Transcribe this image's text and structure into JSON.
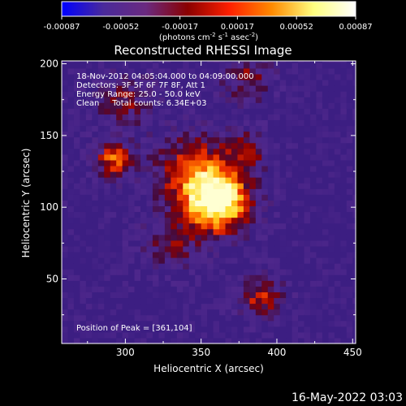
{
  "colorbar": {
    "tick_labels": [
      "-0.00087",
      "-0.00052",
      "-0.00017",
      "0.00017",
      "0.00052",
      "0.00087"
    ],
    "tick_values": [
      -0.00087,
      -0.00052,
      -0.00017,
      0.00017,
      0.00052,
      0.00087
    ],
    "unit": "(photons cm",
    "unit_exp1": "-2",
    "unit_mid": " s",
    "unit_exp2": "-1",
    "unit_mid2": " asec",
    "unit_exp3": "-2",
    "unit_end": ")",
    "stops": [
      "#0000ff",
      "#4a2a9a",
      "#6a2a80",
      "#8a0000",
      "#ff2000",
      "#ff8a00",
      "#ffff80",
      "#ffffff"
    ]
  },
  "chart_data": {
    "type": "heatmap",
    "title": "Reconstructed RHESSI Image",
    "xlabel": "Heliocentric X (arcsec)",
    "ylabel": "Heliocentric Y (arcsec)",
    "xlim": [
      258,
      452
    ],
    "ylim": [
      5,
      202
    ],
    "x_ticks": [
      300,
      350,
      400,
      450
    ],
    "y_ticks": [
      50,
      100,
      150,
      200
    ],
    "annotations": {
      "line1": "18-Nov-2012 04:05:04.000 to 04:09:00.000",
      "line2": "Detectors: 3F 5F 6F 7F 8F, Att 1",
      "line3": "Energy Range: 25.0 - 50.0 keV",
      "line4": "Clean     Total counts: 6.34E+03"
    },
    "peak_label": "Position of Peak = [361,104]",
    "peak": [
      361,
      104
    ],
    "sources": [
      {
        "x": 361,
        "y": 104,
        "amp": 1.0,
        "sigma": 15
      },
      {
        "x": 345,
        "y": 125,
        "amp": 0.55,
        "sigma": 18
      },
      {
        "x": 293,
        "y": 133,
        "amp": 0.6,
        "sigma": 9
      },
      {
        "x": 380,
        "y": 140,
        "amp": 0.35,
        "sigma": 10
      },
      {
        "x": 390,
        "y": 38,
        "amp": 0.5,
        "sigma": 10
      },
      {
        "x": 330,
        "y": 75,
        "amp": 0.35,
        "sigma": 13
      },
      {
        "x": 300,
        "y": 175,
        "amp": 0.35,
        "sigma": 14
      },
      {
        "x": 380,
        "y": 190,
        "amp": 0.35,
        "sigma": 12
      }
    ],
    "grid": false
  },
  "footer": {
    "timestamp": "16-May-2022 03:03"
  }
}
